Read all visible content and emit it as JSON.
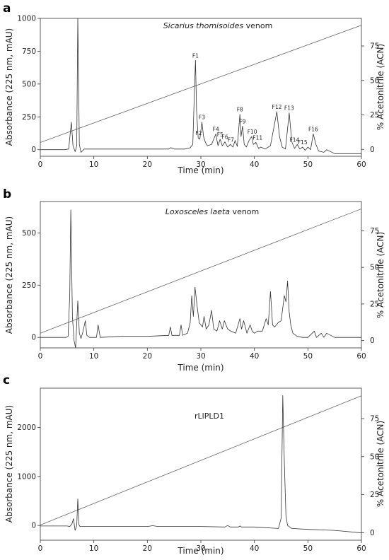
{
  "chart_data": [
    {
      "panel": "a",
      "type": "line",
      "title": "Sicarius thomisoides venom",
      "title_italic": "Sicarius thomisoides",
      "title_plain": " venom",
      "xlabel": "Time (min)",
      "ylabel": "Absorbance (225 nm, mAU)",
      "y2label": "% Acetonitrile (ACN)",
      "xlim": [
        0,
        60
      ],
      "ylim": [
        -50,
        1000
      ],
      "y2lim": [
        -5,
        95
      ],
      "xticks": [
        "0",
        "10",
        "20",
        "30",
        "40",
        "50",
        "60"
      ],
      "yticks": [
        "0",
        "250",
        "500",
        "750",
        "1000"
      ],
      "y2ticks": [
        "0",
        "25",
        "50",
        "75"
      ],
      "series": [
        {
          "x": [
            0,
            4.5,
            5.3,
            5.8,
            6.1,
            6.5,
            6.8,
            7.0,
            7.3,
            7.6,
            8.2,
            10,
            15,
            20,
            24,
            24.4,
            25,
            27,
            28,
            28.5,
            28.8,
            29.0,
            29.2,
            29.5,
            29.8,
            30.2,
            30.5,
            30.8,
            31.2,
            32,
            32.8,
            33.2,
            33.6,
            34,
            34.5,
            35,
            35.5,
            36,
            36.4,
            36.8,
            37.3,
            37.5,
            37.8,
            38.1,
            38.5,
            39,
            39.5,
            39.8,
            40.3,
            40.8,
            41.2,
            42,
            43,
            44.2,
            44.7,
            45.2,
            45.8,
            46.5,
            47,
            47.5,
            48,
            48.5,
            49,
            49.5,
            50,
            50.5,
            51,
            51.5,
            52,
            53,
            53.5,
            55,
            57,
            60
          ],
          "y": [
            0,
            0,
            5,
            210,
            30,
            -15,
            30,
            1000,
            40,
            -20,
            5,
            5,
            5,
            5,
            5,
            15,
            5,
            5,
            15,
            40,
            450,
            680,
            300,
            90,
            80,
            210,
            100,
            60,
            30,
            40,
            120,
            30,
            80,
            30,
            60,
            20,
            40,
            20,
            70,
            25,
            270,
            100,
            180,
            40,
            20,
            70,
            100,
            40,
            55,
            10,
            20,
            5,
            30,
            290,
            100,
            20,
            5,
            280,
            60,
            10,
            40,
            5,
            20,
            -5,
            20,
            0,
            120,
            40,
            -10,
            -20,
            0,
            -30,
            -30,
            -30
          ]
        }
      ],
      "gradient": {
        "x": [
          0,
          60
        ],
        "y": [
          5,
          90
        ]
      },
      "peak_labels": [
        {
          "label": "F1",
          "x": 29.0,
          "y": 680
        },
        {
          "label": "F2",
          "x": 29.6,
          "y": 90
        },
        {
          "label": "F3",
          "x": 30.2,
          "y": 210
        },
        {
          "label": "F4",
          "x": 32.8,
          "y": 120
        },
        {
          "label": "F5",
          "x": 33.6,
          "y": 80
        },
        {
          "label": "F6",
          "x": 34.5,
          "y": 60
        },
        {
          "label": "F7",
          "x": 35.6,
          "y": 40
        },
        {
          "label": "F8",
          "x": 37.3,
          "y": 270
        },
        {
          "label": "F9",
          "x": 37.8,
          "y": 180
        },
        {
          "label": "F10",
          "x": 39.6,
          "y": 100
        },
        {
          "label": "F11",
          "x": 40.6,
          "y": 55
        },
        {
          "label": "F12",
          "x": 44.2,
          "y": 290
        },
        {
          "label": "F13",
          "x": 46.5,
          "y": 280
        },
        {
          "label": "F14",
          "x": 47.5,
          "y": 40
        },
        {
          "label": "F15",
          "x": 49.0,
          "y": 20
        },
        {
          "label": "F16",
          "x": 51.0,
          "y": 120
        }
      ]
    },
    {
      "panel": "b",
      "type": "line",
      "title": "Loxosceles laeta venom",
      "title_italic": "Loxosceles laeta",
      "title_plain": " venom",
      "xlabel": "Time (min)",
      "ylabel": "Absorbance (225 nm, mAU)",
      "y2label": "% Acetonitrile (ACN)",
      "xlim": [
        0,
        60
      ],
      "ylim": [
        -50,
        650
      ],
      "y2lim": [
        -5,
        95
      ],
      "xticks": [
        "0",
        "10",
        "20",
        "30",
        "40",
        "50",
        "60"
      ],
      "yticks": [
        "0",
        "250",
        "500"
      ],
      "y2ticks": [
        "0",
        "25",
        "50",
        "75"
      ],
      "series": [
        {
          "x": [
            0,
            4.8,
            5.2,
            5.5,
            5.7,
            6.0,
            6.3,
            6.6,
            7.0,
            7.3,
            7.6,
            8.0,
            8.4,
            8.7,
            9.2,
            10.5,
            10.8,
            11.2,
            15,
            20,
            24,
            24.3,
            24.6,
            26,
            26.3,
            26.6,
            27.5,
            28.0,
            28.3,
            28.6,
            28.9,
            29.3,
            29.7,
            30.3,
            30.6,
            31.0,
            31.5,
            32.0,
            32.4,
            33.0,
            33.5,
            34.0,
            34.4,
            35.0,
            35.6,
            36.5,
            37.3,
            37.6,
            38.0,
            38.6,
            39.2,
            39.6,
            40.0,
            40.6,
            41.5,
            42.2,
            42.6,
            43.0,
            43.4,
            43.8,
            44.4,
            45.0,
            45.6,
            45.9,
            46.2,
            46.5,
            46.8,
            47.2,
            48,
            49,
            50,
            51.2,
            51.6,
            52.5,
            53,
            53.5,
            55,
            58,
            60
          ],
          "y": [
            0,
            0,
            5,
            200,
            610,
            100,
            -15,
            -50,
            175,
            20,
            -5,
            30,
            80,
            10,
            0,
            0,
            60,
            0,
            5,
            5,
            10,
            50,
            10,
            10,
            60,
            10,
            20,
            70,
            200,
            100,
            240,
            150,
            70,
            50,
            100,
            40,
            60,
            130,
            40,
            30,
            80,
            40,
            80,
            40,
            30,
            20,
            90,
            40,
            80,
            20,
            60,
            30,
            20,
            30,
            30,
            90,
            60,
            220,
            60,
            50,
            70,
            80,
            200,
            170,
            270,
            120,
            60,
            20,
            5,
            0,
            0,
            30,
            0,
            20,
            0,
            20,
            0,
            0,
            0
          ]
        }
      ],
      "gradient": {
        "x": [
          0,
          60
        ],
        "y": [
          5,
          90
        ]
      }
    },
    {
      "panel": "c",
      "type": "line",
      "title": "rLlPLD1",
      "xlabel": "Time (min)",
      "ylabel": "Absorbance (225 nm, mAU)",
      "y2label": "% Acetonitrile (ACN)",
      "xlim": [
        0,
        60
      ],
      "ylim": [
        -300,
        2800
      ],
      "y2lim": [
        -5,
        95
      ],
      "xticks": [
        "0",
        "10",
        "20",
        "30",
        "40",
        "50",
        "60"
      ],
      "yticks": [
        "0",
        "1000",
        "2000"
      ],
      "y2ticks": [
        "0",
        "25",
        "50",
        "75"
      ],
      "series": [
        {
          "x": [
            0,
            5.0,
            5.5,
            5.9,
            6.2,
            6.5,
            6.8,
            7.0,
            7.2,
            7.4,
            8.0,
            15,
            20,
            21,
            22,
            25,
            30,
            34.5,
            35,
            35.5,
            37,
            37.3,
            37.6,
            40,
            44.5,
            45.0,
            45.3,
            45.6,
            45.9,
            46.2,
            46.6,
            47,
            50,
            55,
            60
          ],
          "y": [
            -10,
            -10,
            -20,
            30,
            140,
            -100,
            0,
            540,
            20,
            -20,
            -20,
            -20,
            -20,
            -5,
            -20,
            -20,
            -20,
            -30,
            0,
            -30,
            -30,
            -10,
            -30,
            -30,
            -60,
            150,
            2650,
            1300,
            200,
            0,
            -30,
            -60,
            -80,
            -100,
            -150
          ]
        }
      ],
      "gradient": {
        "x": [
          0,
          60
        ],
        "y": [
          5,
          90
        ]
      }
    }
  ]
}
